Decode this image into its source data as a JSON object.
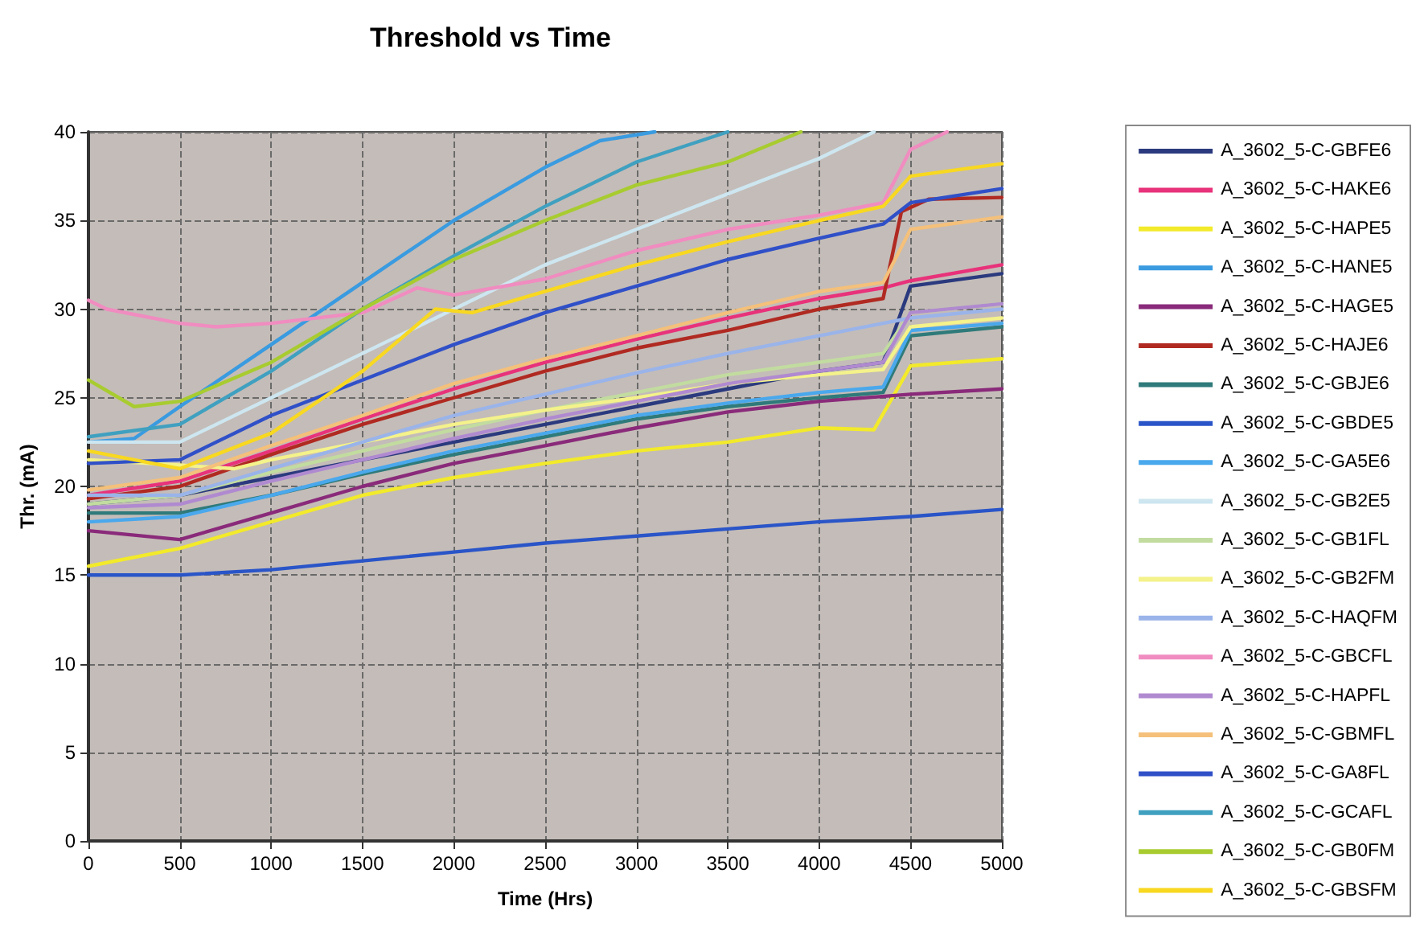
{
  "chart_data": {
    "type": "line",
    "title": "Threshold vs Time",
    "xlabel": "Time (Hrs)",
    "ylabel": "Thr. (mA)",
    "xlim": [
      0,
      5000
    ],
    "xticks": [
      0,
      500,
      1000,
      1500,
      2000,
      2500,
      3000,
      3500,
      4000,
      4500,
      5000
    ],
    "ylim": [
      0,
      40
    ],
    "yticks": [
      0,
      5,
      10,
      15,
      20,
      25,
      30,
      35,
      40
    ],
    "grid": true,
    "legend": "right",
    "marker": "none",
    "line_style": "solid",
    "series": [
      {
        "name": "A_3602_5-C-GBFE6",
        "color": "#2b3a7e",
        "x": [
          0,
          500,
          1000,
          1500,
          2000,
          2500,
          3000,
          3500,
          4000,
          4350,
          4500,
          5000
        ],
        "values": [
          19,
          19.5,
          20.5,
          21.5,
          22.5,
          23.5,
          24.5,
          25.5,
          26.5,
          27,
          31.3,
          32
        ]
      },
      {
        "name": "A_3602_5-C-HAKE6",
        "color": "#e8327a",
        "x": [
          0,
          500,
          1000,
          1500,
          2000,
          2500,
          3000,
          3500,
          4000,
          4350,
          4500,
          5000
        ],
        "values": [
          19.5,
          20.3,
          22,
          23.8,
          25.5,
          27,
          28.3,
          29.5,
          30.6,
          31.2,
          31.6,
          32.5
        ]
      },
      {
        "name": "A_3602_5-C-HAPE5",
        "color": "#f2ea2a",
        "x": [
          0,
          500,
          1000,
          1500,
          2000,
          2500,
          3000,
          3500,
          4000,
          4300,
          4500,
          5000
        ],
        "values": [
          15.5,
          16.5,
          18,
          19.5,
          20.5,
          21.3,
          22,
          22.5,
          23.3,
          23.2,
          26.8,
          27.2
        ]
      },
      {
        "name": "A_3602_5-C-HANE5",
        "color": "#3a9be0",
        "x": [
          0,
          250,
          500,
          1000,
          1500,
          2000,
          2500,
          2800,
          3100
        ],
        "values": [
          22.5,
          22.7,
          24.5,
          28,
          31.5,
          35,
          38,
          39.5,
          40
        ]
      },
      {
        "name": "A_3602_5-C-HAGE5",
        "color": "#8a2a7a",
        "x": [
          0,
          500,
          1000,
          1500,
          2000,
          2500,
          3000,
          3500,
          4000,
          4500,
          5000
        ],
        "values": [
          17.5,
          17,
          18.5,
          20,
          21.3,
          22.3,
          23.3,
          24.2,
          24.8,
          25.2,
          25.5
        ]
      },
      {
        "name": "A_3602_5-C-HAJE6",
        "color": "#b02a22",
        "x": [
          0,
          500,
          1000,
          1500,
          2000,
          2500,
          3000,
          3500,
          4000,
          4350,
          4450,
          4600,
          5000
        ],
        "values": [
          19.3,
          20,
          21.8,
          23.5,
          25,
          26.5,
          27.8,
          28.8,
          30,
          30.6,
          35.5,
          36.2,
          36.3
        ]
      },
      {
        "name": "A_3602_5-C-GBJE6",
        "color": "#2f7a7a",
        "x": [
          0,
          500,
          1000,
          1500,
          2000,
          2500,
          3000,
          3500,
          4000,
          4350,
          4500,
          5000
        ],
        "values": [
          18.5,
          18.5,
          19.5,
          20.7,
          21.8,
          22.8,
          23.8,
          24.5,
          25,
          25.3,
          28.5,
          29
        ]
      },
      {
        "name": "A_3602_5-C-GBDE5",
        "color": "#2a55c8",
        "x": [
          0,
          500,
          1000,
          1500,
          2000,
          2500,
          3000,
          3500,
          4000,
          4500,
          5000
        ],
        "values": [
          15,
          15,
          15.3,
          15.8,
          16.3,
          16.8,
          17.2,
          17.6,
          18,
          18.3,
          18.7
        ]
      },
      {
        "name": "A_3602_5-C-GA5E6",
        "color": "#4aa8ec",
        "x": [
          0,
          500,
          1000,
          1500,
          2000,
          2500,
          3000,
          3500,
          4000,
          4350,
          4500,
          5000
        ],
        "values": [
          18,
          18.3,
          19.5,
          20.8,
          22,
          23,
          24,
          24.7,
          25.3,
          25.6,
          28.8,
          29.2
        ]
      },
      {
        "name": "A_3602_5-C-GB2E5",
        "color": "#cde6f0",
        "x": [
          0,
          500,
          1000,
          1500,
          2000,
          2500,
          3000,
          3500,
          4000,
          4300
        ],
        "values": [
          22.5,
          22.5,
          25,
          27.5,
          30,
          32.5,
          34.5,
          36.5,
          38.5,
          40
        ]
      },
      {
        "name": "A_3602_5-C-GB1FL",
        "color": "#c2dca0",
        "x": [
          0,
          500,
          1000,
          1500,
          2000,
          2500,
          3000,
          3500,
          4000,
          4350,
          4500,
          5000
        ],
        "values": [
          19,
          19.5,
          20.8,
          22,
          23.2,
          24.3,
          25.3,
          26.3,
          27,
          27.5,
          29.8,
          30.3
        ]
      },
      {
        "name": "A_3602_5-C-GB2FM",
        "color": "#f4f28a",
        "x": [
          0,
          500,
          800,
          1000,
          1500,
          2000,
          2500,
          3000,
          3500,
          4000,
          4350,
          4500,
          5000
        ],
        "values": [
          21.5,
          21.2,
          21,
          21.5,
          22.5,
          23.5,
          24.3,
          25,
          25.8,
          26.3,
          26.6,
          29,
          29.5
        ]
      },
      {
        "name": "A_3602_5-C-HAQFM",
        "color": "#9ab4ea",
        "x": [
          0,
          500,
          1000,
          1500,
          2000,
          2500,
          3000,
          3500,
          4000,
          4350,
          4500,
          5000
        ],
        "values": [
          19.5,
          19.5,
          21,
          22.5,
          24,
          25.2,
          26.4,
          27.5,
          28.5,
          29.2,
          29.5,
          30
        ]
      },
      {
        "name": "A_3602_5-C-GBCFL",
        "color": "#f08cc0",
        "x": [
          0,
          100,
          500,
          700,
          1000,
          1500,
          1800,
          2000,
          2500,
          3000,
          3500,
          4000,
          4350,
          4500,
          4700
        ],
        "values": [
          30.5,
          30,
          29.2,
          29,
          29.2,
          29.8,
          31.2,
          30.8,
          31.7,
          33.3,
          34.5,
          35.3,
          36,
          39,
          40
        ]
      },
      {
        "name": "A_3602_5-C-HAPFL",
        "color": "#b08ad0",
        "x": [
          0,
          500,
          1000,
          1500,
          2000,
          2500,
          3000,
          3500,
          4000,
          4350,
          4500,
          5000
        ],
        "values": [
          18.8,
          19,
          20.3,
          21.5,
          22.7,
          23.8,
          24.8,
          25.8,
          26.5,
          27,
          29.8,
          30.3
        ]
      },
      {
        "name": "A_3602_5-C-GBMFL",
        "color": "#f4c07a",
        "x": [
          0,
          500,
          1000,
          1500,
          2000,
          2500,
          3000,
          3500,
          4000,
          4350,
          4500,
          5000
        ],
        "values": [
          19.8,
          20.5,
          22.3,
          24,
          25.8,
          27.2,
          28.5,
          29.8,
          31,
          31.5,
          34.5,
          35.2
        ]
      },
      {
        "name": "A_3602_5-C-GA8FL",
        "color": "#3050c8",
        "x": [
          0,
          500,
          1000,
          1500,
          2000,
          2500,
          3000,
          3500,
          4000,
          4350,
          4500,
          5000
        ],
        "values": [
          21.3,
          21.5,
          24,
          26,
          28,
          29.8,
          31.3,
          32.8,
          34,
          34.8,
          36,
          36.8
        ]
      },
      {
        "name": "A_3602_5-C-GCAFL",
        "color": "#40a0c0",
        "x": [
          0,
          500,
          1000,
          1500,
          2000,
          2500,
          3000,
          3500
        ],
        "values": [
          22.8,
          23.5,
          26.5,
          30,
          33,
          35.8,
          38.3,
          40
        ]
      },
      {
        "name": "A_3602_5-C-GB0FM",
        "color": "#a8cc30",
        "x": [
          0,
          250,
          500,
          1000,
          1500,
          2000,
          2500,
          3000,
          3500,
          3900
        ],
        "values": [
          26,
          24.5,
          24.8,
          27,
          30,
          32.8,
          35,
          37,
          38.3,
          40
        ]
      },
      {
        "name": "A_3602_5-C-GBSFM",
        "color": "#f8d820",
        "x": [
          0,
          500,
          1000,
          1500,
          1900,
          2100,
          2500,
          3000,
          3500,
          4000,
          4350,
          4500,
          5000
        ],
        "values": [
          22,
          21,
          23,
          26.5,
          30,
          29.8,
          31,
          32.5,
          33.8,
          35,
          35.8,
          37.5,
          38.2
        ]
      }
    ]
  }
}
